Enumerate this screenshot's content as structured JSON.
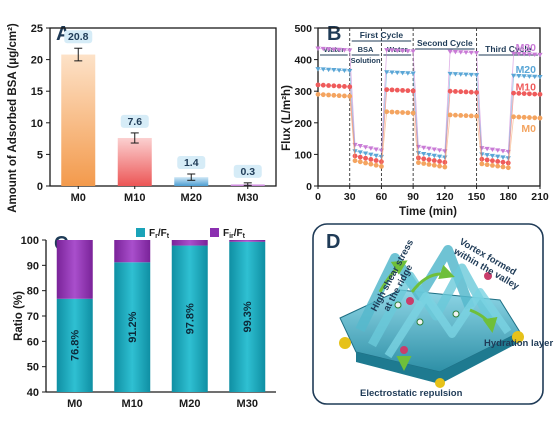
{
  "panels": {
    "A": "A",
    "B": "B",
    "C": "C",
    "D": "D"
  },
  "colors": {
    "axis": "#1a1a1a",
    "labelbox": "#d6ecf7",
    "M0": "#f4a460",
    "M10": "#ef5b5b",
    "M20": "#5aa6d6",
    "M30": "#c97bd6",
    "teal": "#1aa3b8",
    "purple": "#8b2fb0"
  },
  "chart_data": [
    {
      "id": "A",
      "type": "bar",
      "ylabel": "Amount of Adsorbed BSA (μg/cm²)",
      "categories": [
        "M0",
        "M10",
        "M20",
        "M30"
      ],
      "values": [
        20.8,
        7.6,
        1.4,
        0.3
      ],
      "errors": [
        1.0,
        0.8,
        0.5,
        0.2
      ],
      "value_labels": [
        "20.8",
        "7.6",
        "1.4",
        "0.3"
      ],
      "ylim": [
        0,
        25
      ],
      "yticks": [
        "0",
        "5",
        "10",
        "15",
        "20",
        "25"
      ]
    },
    {
      "id": "B",
      "type": "scatter",
      "xlabel": "Time (min)",
      "ylabel": "Flux (L/m²h)",
      "xlim": [
        0,
        210
      ],
      "ylim": [
        0,
        500
      ],
      "xticks": [
        "0",
        "30",
        "60",
        "90",
        "120",
        "150",
        "180",
        "210"
      ],
      "yticks": [
        "0",
        "100",
        "200",
        "300",
        "400",
        "500"
      ],
      "stage_dividers": [
        30,
        60,
        90,
        150
      ],
      "annotations": {
        "first_cycle": "First Cycle",
        "second_cycle": "Second Cycle",
        "third_cycle": "Third Cycle",
        "water1": "Water",
        "bsa": "BSA",
        "solution": "Solution",
        "water2": "Water"
      },
      "series": [
        {
          "name": "M30",
          "water": 435,
          "foul": 120,
          "recover": [
            430,
            425
          ]
        },
        {
          "name": "M20",
          "water": 370,
          "foul": 100,
          "recover": [
            360,
            355
          ]
        },
        {
          "name": "M10",
          "water": 320,
          "foul": 85,
          "recover": [
            305,
            300
          ]
        },
        {
          "name": "M0",
          "water": 290,
          "foul": 70,
          "recover": [
            235,
            225
          ]
        }
      ]
    },
    {
      "id": "C",
      "type": "bar",
      "ylabel": "Ratio (%)",
      "categories": [
        "M0",
        "M10",
        "M20",
        "M30"
      ],
      "legend": [
        "Fr/Ft",
        "Fir/Ft"
      ],
      "legend_position": "top",
      "stacked": true,
      "reversible": [
        76.8,
        91.2,
        97.8,
        99.3
      ],
      "irreversible": [
        23.2,
        8.8,
        2.2,
        0.7
      ],
      "value_labels": [
        "76.8%",
        "91.2%",
        "97.8%",
        "99.3%"
      ],
      "ylim": [
        40,
        100
      ],
      "yticks": [
        "40",
        "50",
        "60",
        "70",
        "80",
        "90",
        "100"
      ]
    }
  ],
  "diagram_D": {
    "labels": {
      "shear": "High shear stress at the ridge",
      "vortex": "Vortex formed within the valley",
      "hydration": "Hydration layer",
      "electro": "Electrostatic repulsion"
    }
  }
}
